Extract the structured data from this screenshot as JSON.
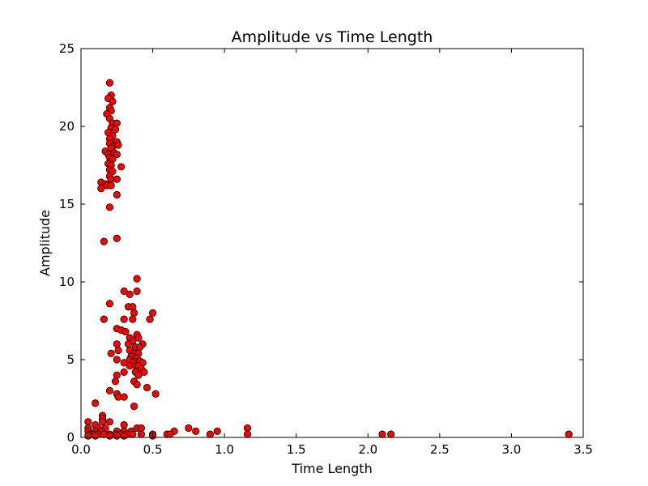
{
  "chart_data": {
    "type": "scatter",
    "title": "Amplitude vs Time Length",
    "xlabel": "Time Length",
    "ylabel": "Amplitude",
    "xlim": [
      0.0,
      3.5
    ],
    "ylim": [
      0,
      25
    ],
    "xticks": [
      0.0,
      0.5,
      1.0,
      1.5,
      2.0,
      2.5,
      3.0,
      3.5
    ],
    "xtick_labels": [
      "0.0",
      "0.5",
      "1.0",
      "1.5",
      "2.0",
      "2.5",
      "3.0",
      "3.5"
    ],
    "yticks": [
      0,
      5,
      10,
      15,
      20,
      25
    ],
    "ytick_labels": [
      "0",
      "5",
      "10",
      "15",
      "20",
      "25"
    ],
    "grid": false,
    "marker_color": "#ff0000",
    "marker_edge_color": "#000000",
    "series": [
      {
        "points": [
          [
            0.2,
            22.8
          ],
          [
            0.21,
            22.0
          ],
          [
            0.19,
            21.8
          ],
          [
            0.22,
            21.6
          ],
          [
            0.2,
            21.2
          ],
          [
            0.21,
            21.0
          ],
          [
            0.18,
            20.8
          ],
          [
            0.2,
            20.5
          ],
          [
            0.22,
            20.2
          ],
          [
            0.25,
            20.2
          ],
          [
            0.21,
            19.9
          ],
          [
            0.24,
            19.8
          ],
          [
            0.19,
            19.6
          ],
          [
            0.22,
            19.4
          ],
          [
            0.2,
            19.2
          ],
          [
            0.23,
            19.0
          ],
          [
            0.25,
            19.0
          ],
          [
            0.2,
            18.9
          ],
          [
            0.22,
            18.7
          ],
          [
            0.26,
            18.8
          ],
          [
            0.17,
            18.4
          ],
          [
            0.19,
            18.2
          ],
          [
            0.21,
            18.6
          ],
          [
            0.23,
            18.3
          ],
          [
            0.2,
            18.0
          ],
          [
            0.22,
            17.9
          ],
          [
            0.25,
            18.2
          ],
          [
            0.19,
            17.6
          ],
          [
            0.21,
            17.5
          ],
          [
            0.2,
            17.2
          ],
          [
            0.22,
            17.1
          ],
          [
            0.28,
            17.4
          ],
          [
            0.2,
            16.8
          ],
          [
            0.21,
            16.6
          ],
          [
            0.25,
            16.6
          ],
          [
            0.14,
            16.4
          ],
          [
            0.17,
            16.3
          ],
          [
            0.14,
            16.0
          ],
          [
            0.18,
            16.2
          ],
          [
            0.21,
            16.2
          ],
          [
            0.25,
            15.6
          ],
          [
            0.2,
            14.8
          ],
          [
            0.25,
            12.8
          ],
          [
            0.16,
            12.6
          ],
          [
            0.39,
            10.2
          ],
          [
            0.3,
            9.4
          ],
          [
            0.39,
            9.4
          ],
          [
            0.34,
            9.2
          ],
          [
            0.2,
            8.6
          ],
          [
            0.33,
            8.4
          ],
          [
            0.36,
            8.4
          ],
          [
            0.37,
            8.0
          ],
          [
            0.5,
            8.0
          ],
          [
            0.16,
            7.6
          ],
          [
            0.3,
            7.6
          ],
          [
            0.36,
            7.6
          ],
          [
            0.48,
            7.6
          ],
          [
            0.25,
            7.0
          ],
          [
            0.28,
            6.9
          ],
          [
            0.31,
            6.8
          ],
          [
            0.39,
            6.6
          ],
          [
            0.4,
            6.4
          ],
          [
            0.34,
            6.4
          ],
          [
            0.36,
            6.2
          ],
          [
            0.25,
            6.0
          ],
          [
            0.33,
            6.0
          ],
          [
            0.43,
            6.0
          ],
          [
            0.38,
            5.8
          ],
          [
            0.41,
            5.8
          ],
          [
            0.26,
            5.6
          ],
          [
            0.34,
            5.6
          ],
          [
            0.37,
            5.4
          ],
          [
            0.4,
            5.4
          ],
          [
            0.21,
            5.4
          ],
          [
            0.35,
            5.2
          ],
          [
            0.39,
            5.1
          ],
          [
            0.25,
            5.0
          ],
          [
            0.34,
            5.0
          ],
          [
            0.37,
            4.9
          ],
          [
            0.41,
            4.9
          ],
          [
            0.3,
            4.8
          ],
          [
            0.36,
            4.8
          ],
          [
            0.43,
            4.8
          ],
          [
            0.34,
            4.6
          ],
          [
            0.38,
            4.6
          ],
          [
            0.4,
            4.6
          ],
          [
            0.42,
            4.4
          ],
          [
            0.3,
            4.2
          ],
          [
            0.38,
            4.2
          ],
          [
            0.44,
            4.2
          ],
          [
            0.25,
            4.0
          ],
          [
            0.4,
            4.0
          ],
          [
            0.37,
            3.6
          ],
          [
            0.24,
            3.6
          ],
          [
            0.39,
            3.4
          ],
          [
            0.46,
            3.2
          ],
          [
            0.2,
            3.0
          ],
          [
            0.52,
            2.8
          ],
          [
            0.25,
            2.8
          ],
          [
            0.26,
            2.6
          ],
          [
            0.3,
            2.6
          ],
          [
            0.37,
            2.0
          ],
          [
            0.1,
            2.2
          ],
          [
            0.15,
            1.4
          ],
          [
            0.15,
            1.2
          ],
          [
            0.05,
            1.0
          ],
          [
            0.15,
            1.0
          ],
          [
            0.2,
            1.0
          ],
          [
            0.1,
            0.8
          ],
          [
            0.3,
            0.8
          ],
          [
            0.05,
            0.6
          ],
          [
            0.12,
            0.6
          ],
          [
            0.17,
            0.6
          ],
          [
            0.39,
            0.6
          ],
          [
            0.42,
            0.6
          ],
          [
            0.75,
            0.6
          ],
          [
            1.16,
            0.6
          ],
          [
            0.05,
            0.4
          ],
          [
            0.1,
            0.4
          ],
          [
            0.14,
            0.4
          ],
          [
            0.25,
            0.4
          ],
          [
            0.3,
            0.4
          ],
          [
            0.35,
            0.4
          ],
          [
            0.65,
            0.4
          ],
          [
            0.8,
            0.4
          ],
          [
            0.95,
            0.4
          ],
          [
            0.06,
            0.2
          ],
          [
            0.09,
            0.2
          ],
          [
            0.12,
            0.2
          ],
          [
            0.16,
            0.2
          ],
          [
            0.2,
            0.2
          ],
          [
            0.24,
            0.2
          ],
          [
            0.28,
            0.2
          ],
          [
            0.32,
            0.2
          ],
          [
            0.36,
            0.2
          ],
          [
            0.42,
            0.2
          ],
          [
            0.5,
            0.2
          ],
          [
            0.6,
            0.2
          ],
          [
            0.62,
            0.2
          ],
          [
            0.9,
            0.2
          ],
          [
            1.16,
            0.2
          ],
          [
            2.1,
            0.2
          ],
          [
            2.16,
            0.2
          ],
          [
            3.4,
            0.2
          ],
          [
            0.05,
            0.1
          ],
          [
            0.1,
            0.1
          ],
          [
            0.2,
            0.1
          ],
          [
            0.25,
            0.1
          ],
          [
            0.3,
            0.1
          ],
          [
            0.5,
            0.1
          ]
        ]
      }
    ]
  }
}
